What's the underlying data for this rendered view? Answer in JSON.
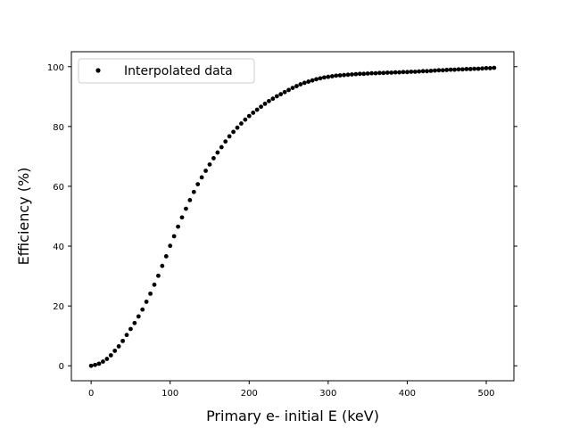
{
  "chart_data": {
    "type": "scatter",
    "title": "",
    "xlabel": "Primary e- initial E (keV)",
    "ylabel": "Efficiency (%)",
    "xlim": [
      -25,
      535
    ],
    "ylim": [
      -5,
      105
    ],
    "xticks": [
      0,
      100,
      200,
      300,
      400,
      500
    ],
    "yticks": [
      0,
      20,
      40,
      60,
      80,
      100
    ],
    "grid": false,
    "legend": {
      "placement": "top-left",
      "entries": [
        "Interpolated data"
      ]
    },
    "marker_color": "#000000",
    "series": [
      {
        "name": "Interpolated data",
        "x": [
          0,
          5,
          10,
          15,
          20,
          25,
          30,
          35,
          40,
          45,
          50,
          55,
          60,
          65,
          70,
          75,
          80,
          85,
          90,
          95,
          100,
          105,
          110,
          115,
          120,
          125,
          130,
          135,
          140,
          145,
          150,
          155,
          160,
          165,
          170,
          175,
          180,
          185,
          190,
          195,
          200,
          205,
          210,
          215,
          220,
          225,
          230,
          235,
          240,
          245,
          250,
          255,
          260,
          265,
          270,
          275,
          280,
          285,
          290,
          295,
          300,
          305,
          310,
          315,
          320,
          325,
          330,
          335,
          340,
          345,
          350,
          355,
          360,
          365,
          370,
          375,
          380,
          385,
          390,
          395,
          400,
          405,
          410,
          415,
          420,
          425,
          430,
          435,
          440,
          445,
          450,
          455,
          460,
          465,
          470,
          475,
          480,
          485,
          490,
          495,
          500,
          505,
          510
        ],
        "y": [
          0.0,
          0.3,
          0.7,
          1.4,
          2.3,
          3.5,
          5.0,
          6.5,
          8.3,
          10.3,
          12.3,
          14.3,
          16.5,
          18.8,
          21.4,
          24.1,
          27.1,
          30.1,
          33.4,
          36.6,
          40.1,
          43.3,
          46.5,
          49.6,
          52.5,
          55.4,
          58.1,
          60.7,
          63.0,
          65.2,
          67.3,
          69.4,
          71.3,
          73.1,
          75.0,
          76.7,
          78.2,
          79.6,
          81.0,
          82.3,
          83.5,
          84.6,
          85.6,
          86.6,
          87.6,
          88.5,
          89.3,
          90.1,
          90.8,
          91.5,
          92.2,
          92.9,
          93.5,
          94.1,
          94.6,
          95.0,
          95.4,
          95.8,
          96.1,
          96.4,
          96.6,
          96.8,
          97.0,
          97.1,
          97.2,
          97.3,
          97.4,
          97.5,
          97.6,
          97.6,
          97.7,
          97.8,
          97.8,
          97.9,
          97.9,
          98.0,
          98.0,
          98.1,
          98.1,
          98.2,
          98.2,
          98.3,
          98.3,
          98.4,
          98.5,
          98.5,
          98.6,
          98.7,
          98.8,
          98.8,
          98.9,
          99.0,
          99.0,
          99.1,
          99.1,
          99.2,
          99.2,
          99.3,
          99.3,
          99.4,
          99.5,
          99.5,
          99.6
        ]
      }
    ]
  }
}
